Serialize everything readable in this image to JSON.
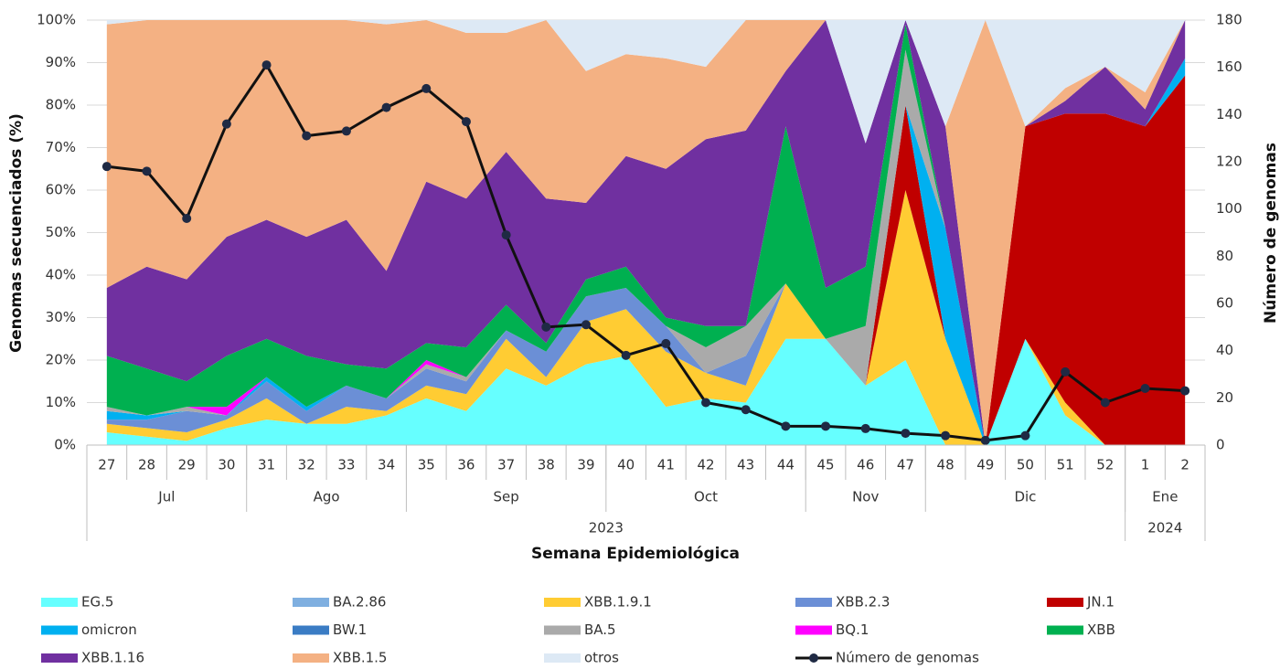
{
  "chart_data": {
    "type": "stacked_area_line",
    "x_label": "Semana Epidemiológica",
    "y_label": "Genomas secuenciados (%)",
    "y2_label": "Número de genomas",
    "categories": [
      "27",
      "28",
      "29",
      "30",
      "31",
      "32",
      "33",
      "34",
      "35",
      "36",
      "37",
      "38",
      "39",
      "40",
      "41",
      "42",
      "43",
      "44",
      "45",
      "46",
      "47",
      "48",
      "49",
      "50",
      "51",
      "52",
      "1",
      "2"
    ],
    "months": [
      {
        "label": "Jul",
        "span": 4
      },
      {
        "label": "Ago",
        "span": 4
      },
      {
        "label": "Sep",
        "span": 5
      },
      {
        "label": "Oct",
        "span": 5
      },
      {
        "label": "Nov",
        "span": 3
      },
      {
        "label": "Dic",
        "span": 5
      },
      {
        "label": "Ene",
        "span": 2
      }
    ],
    "years": [
      {
        "label": "2023",
        "span": 26
      },
      {
        "label": "2024",
        "span": 2
      }
    ],
    "ylim": [
      0,
      100
    ],
    "yticks": [
      {
        "value": 0,
        "label": "0%"
      },
      {
        "value": 10,
        "label": "10%"
      },
      {
        "value": 20,
        "label": "20%"
      },
      {
        "value": 30,
        "label": "30%"
      },
      {
        "value": 40,
        "label": "40%"
      },
      {
        "value": 50,
        "label": "50%"
      },
      {
        "value": 60,
        "label": "60%"
      },
      {
        "value": 70,
        "label": "70%"
      },
      {
        "value": 80,
        "label": "80%"
      },
      {
        "value": 90,
        "label": "90%"
      },
      {
        "value": 100,
        "label": "100%"
      }
    ],
    "y2lim": [
      0,
      180
    ],
    "y2ticks": [
      0,
      20,
      40,
      60,
      80,
      100,
      120,
      140,
      160,
      180
    ],
    "grid": true,
    "series": [
      {
        "name": "EG.5",
        "color": "#66ffff",
        "values": [
          3,
          2,
          1,
          4,
          6,
          5,
          5,
          7,
          11,
          8,
          18,
          14,
          19,
          21,
          9,
          11,
          10,
          25,
          25,
          14,
          20,
          0,
          0,
          25,
          7,
          0,
          0,
          0
        ]
      },
      {
        "name": "BA.2.86",
        "color": "#7fafe0",
        "values": [
          0,
          0,
          0,
          0,
          0,
          0,
          0,
          0,
          0,
          0,
          0,
          0,
          0,
          0,
          0,
          0,
          0,
          0,
          0,
          0,
          0,
          0,
          0,
          0,
          0,
          0,
          0,
          0
        ]
      },
      {
        "name": "XBB.1.9.1",
        "color": "#ffcc33",
        "values": [
          2,
          2,
          2,
          2,
          5,
          0,
          4,
          1,
          3,
          4,
          7,
          2,
          10,
          11,
          13,
          6,
          4,
          13,
          0,
          0,
          40,
          25,
          0,
          0,
          3,
          0,
          0,
          0
        ]
      },
      {
        "name": "XBB.2.3",
        "color": "#6b8fd6",
        "values": [
          1,
          2,
          5,
          1,
          4,
          3,
          5,
          3,
          4,
          3,
          2,
          6,
          6,
          5,
          6,
          0,
          7,
          0,
          0,
          0,
          0,
          0,
          0,
          0,
          0,
          0,
          0,
          0
        ]
      },
      {
        "name": "JN.1",
        "color": "#c00000",
        "values": [
          0,
          0,
          0,
          0,
          0,
          0,
          0,
          0,
          0,
          0,
          0,
          0,
          0,
          0,
          0,
          0,
          0,
          0,
          0,
          0,
          20,
          0,
          0,
          50,
          68,
          78,
          75,
          87
        ]
      },
      {
        "name": "omicron",
        "color": "#00b0f0",
        "values": [
          2,
          1,
          0,
          0,
          1,
          1,
          0,
          0,
          0,
          0,
          0,
          0,
          0,
          0,
          0,
          0,
          0,
          0,
          0,
          0,
          0,
          26,
          0,
          0,
          0,
          0,
          0,
          4
        ]
      },
      {
        "name": "BW.1",
        "color": "#3a7cc4",
        "values": [
          0,
          0,
          0,
          0,
          0,
          0,
          0,
          0,
          0,
          0,
          0,
          0,
          0,
          0,
          0,
          0,
          0,
          0,
          0,
          0,
          0,
          0,
          0,
          0,
          0,
          0,
          0,
          0
        ]
      },
      {
        "name": "BA.5",
        "color": "#aaaaaa",
        "values": [
          1,
          0,
          1,
          0,
          0,
          0,
          0,
          0,
          1,
          1,
          0,
          0,
          0,
          0,
          0,
          6,
          7,
          0,
          0,
          14,
          13,
          0,
          0,
          0,
          0,
          0,
          0,
          0
        ]
      },
      {
        "name": "BQ.1",
        "color": "#ff00ff",
        "values": [
          0,
          0,
          0,
          2,
          0,
          0,
          0,
          0,
          1,
          0,
          0,
          0,
          0,
          0,
          0,
          0,
          0,
          0,
          0,
          0,
          0,
          0,
          0,
          0,
          0,
          0,
          0,
          0
        ]
      },
      {
        "name": "XBB",
        "color": "#00b050",
        "values": [
          12,
          11,
          6,
          12,
          9,
          12,
          5,
          7,
          4,
          7,
          6,
          2,
          4,
          5,
          2,
          5,
          0,
          37,
          12,
          14,
          6,
          0,
          0,
          0,
          0,
          0,
          0,
          0
        ]
      },
      {
        "name": "XBB.1.16",
        "color": "#7030a0",
        "values": [
          16,
          24,
          24,
          28,
          28,
          28,
          34,
          23,
          38,
          35,
          36,
          34,
          18,
          26,
          35,
          44,
          46,
          13,
          63,
          29,
          1,
          24,
          0,
          0,
          3,
          11,
          4,
          9
        ]
      },
      {
        "name": "XBB.1.5",
        "color": "#f4b183",
        "values": [
          62,
          58,
          61,
          51,
          47,
          51,
          47,
          58,
          38,
          39,
          28,
          42,
          31,
          24,
          26,
          17,
          26,
          12,
          0,
          0,
          0,
          0,
          100,
          0,
          3,
          0,
          4,
          0
        ]
      },
      {
        "name": "otros",
        "color": "#dde9f5",
        "values": [
          1,
          0,
          0,
          0,
          0,
          0,
          0,
          1,
          0,
          3,
          3,
          0,
          12,
          8,
          9,
          11,
          0,
          0,
          0,
          29,
          0,
          25,
          0,
          25,
          16,
          11,
          17,
          0
        ]
      },
      {
        "name": "Número de genomas",
        "color": "#111111",
        "axis": "y2",
        "values": [
          118,
          116,
          96,
          136,
          161,
          131,
          133,
          143,
          151,
          137,
          89,
          50,
          51,
          38,
          43,
          18,
          15,
          8,
          8,
          7,
          5,
          4,
          2,
          4,
          31,
          18,
          24,
          23
        ]
      }
    ]
  }
}
